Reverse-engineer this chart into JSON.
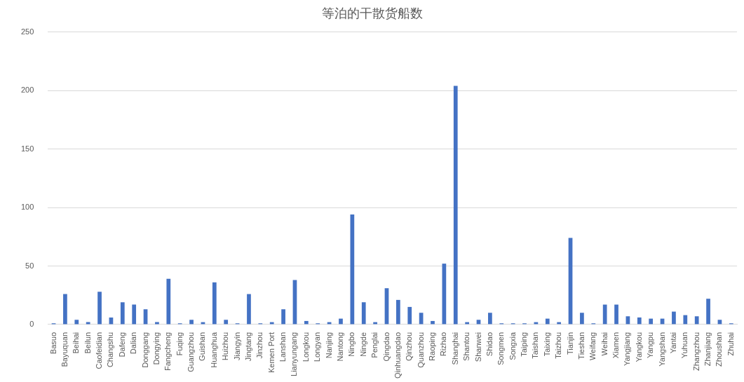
{
  "chart_data": {
    "type": "bar",
    "title": "等泊的干散货船数",
    "categories": [
      "Basuo",
      "Bayuquan",
      "Beihai",
      "Beilun",
      "Caofeidian",
      "Changshu",
      "Dafeng",
      "Dalian",
      "Donggang",
      "Dongying",
      "Fangcheng",
      "Fuqing",
      "Guangzhou",
      "Guishan",
      "Huanghua",
      "Huizhou",
      "Jiangyin",
      "Jingtang",
      "Jinzhou",
      "Kemen Port",
      "Lanshan",
      "Lianyungang",
      "Longkou",
      "Longyan",
      "Nanjing",
      "Nantong",
      "Ningbo",
      "Ningde",
      "Penglai",
      "Qingdao",
      "Qinhuangdao",
      "Qinzhou",
      "Quanzhou",
      "Raoping",
      "Rizhao",
      "Shanghai",
      "Shantou",
      "Shanwei",
      "Shidao",
      "Songmen",
      "Songxia",
      "Taiping",
      "Taishan",
      "Taixing",
      "Taizhou",
      "Tianjin",
      "Tieshan",
      "Weifang",
      "Weihai",
      "Xiamen",
      "Yangjiang",
      "Yangkou",
      "Yangpu",
      "Yangshan",
      "Yantai",
      "Yuhuan",
      "Zhangzhou",
      "Zhanjiang",
      "Zhoushan",
      "Zhuhai"
    ],
    "values": [
      1,
      26,
      4,
      2,
      28,
      6,
      19,
      17,
      13,
      2,
      39,
      1,
      4,
      2,
      36,
      4,
      1,
      26,
      1,
      2,
      13,
      38,
      3,
      1,
      2,
      5,
      94,
      19,
      2,
      31,
      21,
      15,
      10,
      3,
      52,
      204,
      2,
      4,
      10,
      1,
      1,
      1,
      2,
      5,
      2,
      74,
      10,
      1,
      17,
      17,
      7,
      6,
      5,
      5,
      11,
      8,
      7,
      22,
      4,
      1
    ],
    "color": "#4472c4",
    "ylim": [
      0,
      250
    ],
    "yticks": [
      0,
      50,
      100,
      150,
      200,
      250
    ],
    "grid": "y",
    "legend": false
  }
}
